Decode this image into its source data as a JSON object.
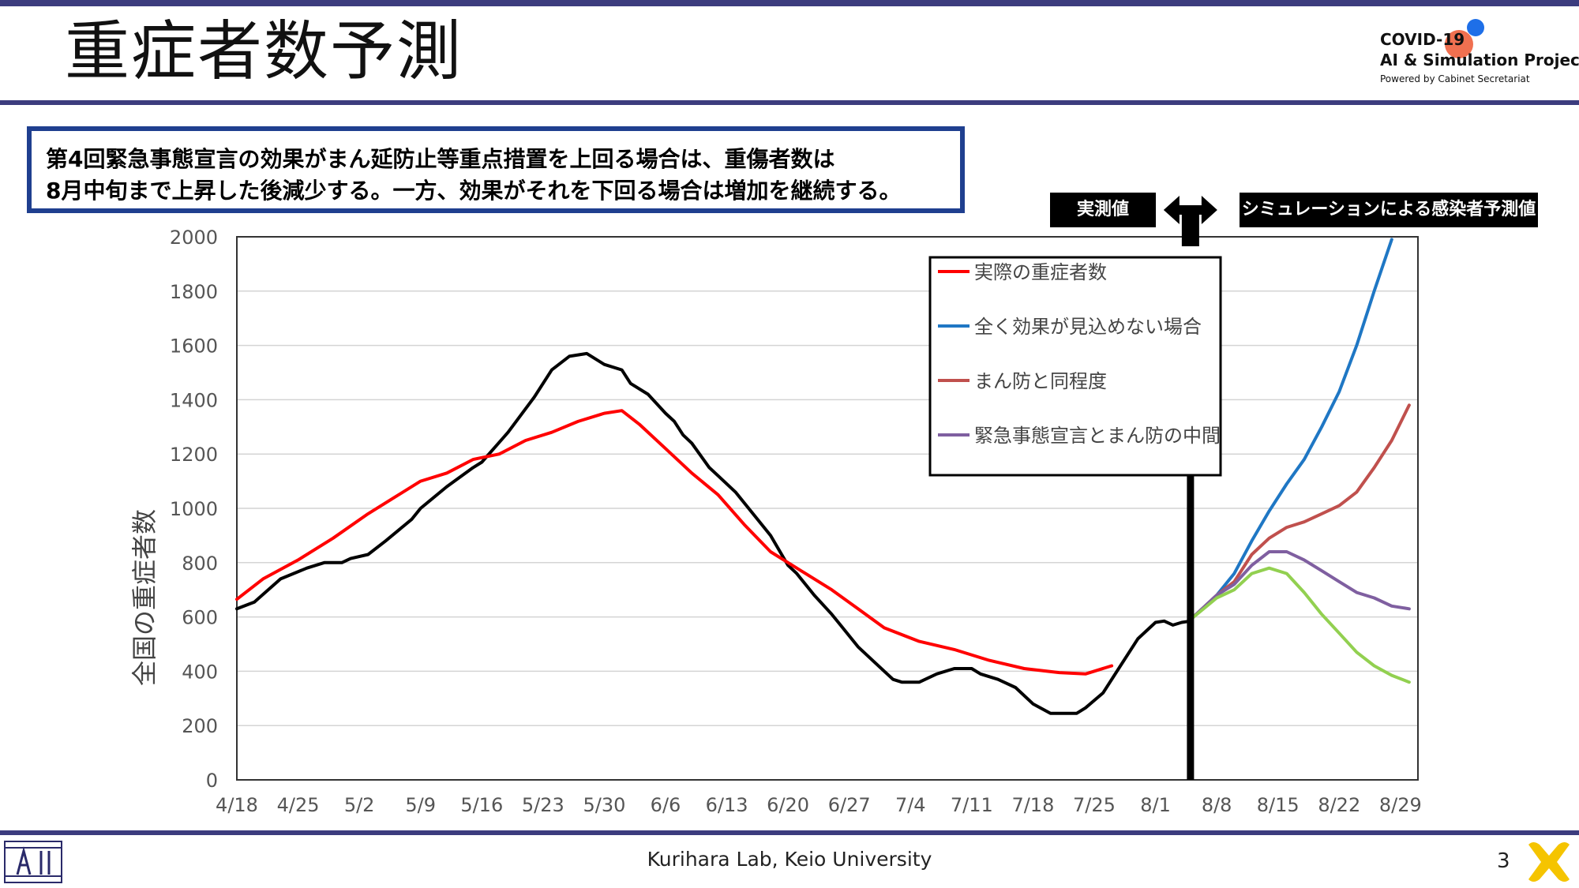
{
  "slide": {
    "title": "重症者数予測",
    "brand": {
      "line1": "COVID-19",
      "line2": "AI & Simulation Project",
      "line3": "Powered by Cabinet Secretariat"
    },
    "callout": {
      "line1": "第4回緊急事態宣言の効果がまん延防止等重点措置を上回る場合は、重傷者数は",
      "line2": "8月中旬まで上昇した後減少する。一方、効果がそれを下回る場合は増加を継続する。"
    },
    "tag_actual": "実測値",
    "tag_sim": "シミュレーションによる感染者予測値",
    "footer": "Kurihara Lab, Keio University",
    "page_number": "3"
  },
  "colors": {
    "accent_bar": "#3c3c7e",
    "callout_border": "#1f3f8f",
    "observed": "#000000",
    "actual": "#ff0000",
    "no_effect": "#1f77c4",
    "manbou": "#c0504d",
    "middle": "#7f5fa0",
    "fourth": "#92d050"
  },
  "chart_data": {
    "type": "line",
    "ylabel": "全国の重症者数",
    "ylim": [
      0,
      2000
    ],
    "yticks": [
      0,
      200,
      400,
      600,
      800,
      1000,
      1200,
      1400,
      1600,
      1800,
      2000
    ],
    "xlim": [
      "4/18",
      "8/31"
    ],
    "xtick_labels": [
      "4/18",
      "4/25",
      "5/2",
      "5/9",
      "5/16",
      "5/23",
      "5/30",
      "6/6",
      "6/13",
      "6/20",
      "6/27",
      "7/4",
      "7/11",
      "7/18",
      "7/25",
      "8/1",
      "8/8",
      "8/15",
      "8/22",
      "8/29"
    ],
    "grid": "horizontal",
    "legend_position": "top-right",
    "divider_date": "8/5",
    "series": [
      {
        "key": "observed",
        "color": "#000000",
        "points": [
          [
            "4/18",
            630
          ],
          [
            "4/20",
            655
          ],
          [
            "4/23",
            740
          ],
          [
            "4/26",
            780
          ],
          [
            "4/28",
            800
          ],
          [
            "4/30",
            800
          ],
          [
            "5/1",
            815
          ],
          [
            "5/3",
            830
          ],
          [
            "5/5",
            880
          ],
          [
            "5/8",
            960
          ],
          [
            "5/9",
            1000
          ],
          [
            "5/12",
            1080
          ],
          [
            "5/15",
            1150
          ],
          [
            "5/16",
            1170
          ],
          [
            "5/19",
            1280
          ],
          [
            "5/22",
            1410
          ],
          [
            "5/24",
            1510
          ],
          [
            "5/26",
            1560
          ],
          [
            "5/28",
            1570
          ],
          [
            "5/30",
            1530
          ],
          [
            "6/1",
            1510
          ],
          [
            "6/2",
            1460
          ],
          [
            "6/4",
            1420
          ],
          [
            "6/6",
            1350
          ],
          [
            "6/7",
            1320
          ],
          [
            "6/8",
            1270
          ],
          [
            "6/9",
            1240
          ],
          [
            "6/11",
            1150
          ],
          [
            "6/12",
            1120
          ],
          [
            "6/14",
            1060
          ],
          [
            "6/16",
            980
          ],
          [
            "6/18",
            900
          ],
          [
            "6/20",
            790
          ],
          [
            "6/21",
            760
          ],
          [
            "6/23",
            680
          ],
          [
            "6/25",
            610
          ],
          [
            "6/26",
            570
          ],
          [
            "6/28",
            490
          ],
          [
            "6/30",
            430
          ],
          [
            "7/2",
            370
          ],
          [
            "7/3",
            360
          ],
          [
            "7/5",
            360
          ],
          [
            "7/7",
            390
          ],
          [
            "7/9",
            410
          ],
          [
            "7/11",
            410
          ],
          [
            "7/12",
            390
          ],
          [
            "7/14",
            370
          ],
          [
            "7/16",
            340
          ],
          [
            "7/18",
            280
          ],
          [
            "7/20",
            245
          ],
          [
            "7/23",
            245
          ],
          [
            "7/24",
            265
          ],
          [
            "7/26",
            320
          ],
          [
            "7/28",
            420
          ],
          [
            "7/30",
            520
          ],
          [
            "8/1",
            580
          ],
          [
            "8/2",
            585
          ],
          [
            "8/3",
            570
          ],
          [
            "8/4",
            580
          ],
          [
            "8/5",
            585
          ]
        ]
      },
      {
        "key": "actual",
        "color": "#ff0000",
        "name": "実際の重症者数",
        "points": [
          [
            "4/18",
            665
          ],
          [
            "4/21",
            740
          ],
          [
            "4/25",
            810
          ],
          [
            "4/29",
            890
          ],
          [
            "5/3",
            980
          ],
          [
            "5/6",
            1040
          ],
          [
            "5/9",
            1100
          ],
          [
            "5/12",
            1130
          ],
          [
            "5/15",
            1180
          ],
          [
            "5/18",
            1200
          ],
          [
            "5/21",
            1250
          ],
          [
            "5/24",
            1280
          ],
          [
            "5/27",
            1320
          ],
          [
            "5/30",
            1350
          ],
          [
            "6/1",
            1360
          ],
          [
            "6/3",
            1310
          ],
          [
            "6/6",
            1220
          ],
          [
            "6/9",
            1130
          ],
          [
            "6/12",
            1050
          ],
          [
            "6/15",
            940
          ],
          [
            "6/18",
            840
          ],
          [
            "6/22",
            760
          ],
          [
            "6/25",
            700
          ],
          [
            "6/28",
            630
          ],
          [
            "7/1",
            560
          ],
          [
            "7/5",
            510
          ],
          [
            "7/9",
            480
          ],
          [
            "7/13",
            440
          ],
          [
            "7/17",
            410
          ],
          [
            "7/21",
            395
          ],
          [
            "7/24",
            390
          ],
          [
            "7/27",
            420
          ]
        ]
      },
      {
        "key": "no_effect",
        "color": "#1f77c4",
        "name": "全く効果が見込めない場合",
        "points": [
          [
            "8/5",
            590
          ],
          [
            "8/8",
            680
          ],
          [
            "8/10",
            760
          ],
          [
            "8/12",
            880
          ],
          [
            "8/14",
            990
          ],
          [
            "8/16",
            1090
          ],
          [
            "8/18",
            1180
          ],
          [
            "8/20",
            1300
          ],
          [
            "8/22",
            1430
          ],
          [
            "8/24",
            1600
          ],
          [
            "8/26",
            1800
          ],
          [
            "8/28",
            1990
          ]
        ]
      },
      {
        "key": "manbou",
        "color": "#c0504d",
        "name": "まん防と同程度",
        "points": [
          [
            "8/5",
            590
          ],
          [
            "8/8",
            680
          ],
          [
            "8/10",
            730
          ],
          [
            "8/12",
            830
          ],
          [
            "8/14",
            890
          ],
          [
            "8/16",
            930
          ],
          [
            "8/18",
            950
          ],
          [
            "8/20",
            980
          ],
          [
            "8/22",
            1010
          ],
          [
            "8/24",
            1060
          ],
          [
            "8/26",
            1150
          ],
          [
            "8/28",
            1250
          ],
          [
            "8/30",
            1380
          ]
        ]
      },
      {
        "key": "middle",
        "color": "#7f5fa0",
        "name": "緊急事態宣言とまん防の中間",
        "points": [
          [
            "8/5",
            590
          ],
          [
            "8/8",
            680
          ],
          [
            "8/10",
            720
          ],
          [
            "8/12",
            790
          ],
          [
            "8/14",
            840
          ],
          [
            "8/16",
            840
          ],
          [
            "8/18",
            810
          ],
          [
            "8/20",
            770
          ],
          [
            "8/22",
            730
          ],
          [
            "8/24",
            690
          ],
          [
            "8/26",
            670
          ],
          [
            "8/28",
            640
          ],
          [
            "8/30",
            630
          ]
        ]
      },
      {
        "key": "fourth",
        "color": "#92d050",
        "points": [
          [
            "8/5",
            590
          ],
          [
            "8/8",
            670
          ],
          [
            "8/10",
            700
          ],
          [
            "8/12",
            760
          ],
          [
            "8/14",
            780
          ],
          [
            "8/16",
            760
          ],
          [
            "8/18",
            690
          ],
          [
            "8/20",
            610
          ],
          [
            "8/22",
            540
          ],
          [
            "8/24",
            470
          ],
          [
            "8/26",
            420
          ],
          [
            "8/28",
            385
          ],
          [
            "8/30",
            360
          ]
        ]
      }
    ],
    "legend": [
      {
        "key": "actual",
        "label": "実際の重症者数"
      },
      {
        "key": "no_effect",
        "label": "全く効果が見込めない場合"
      },
      {
        "key": "manbou",
        "label": "まん防と同程度"
      },
      {
        "key": "middle",
        "label": "緊急事態宣言とまん防の中間"
      }
    ]
  }
}
